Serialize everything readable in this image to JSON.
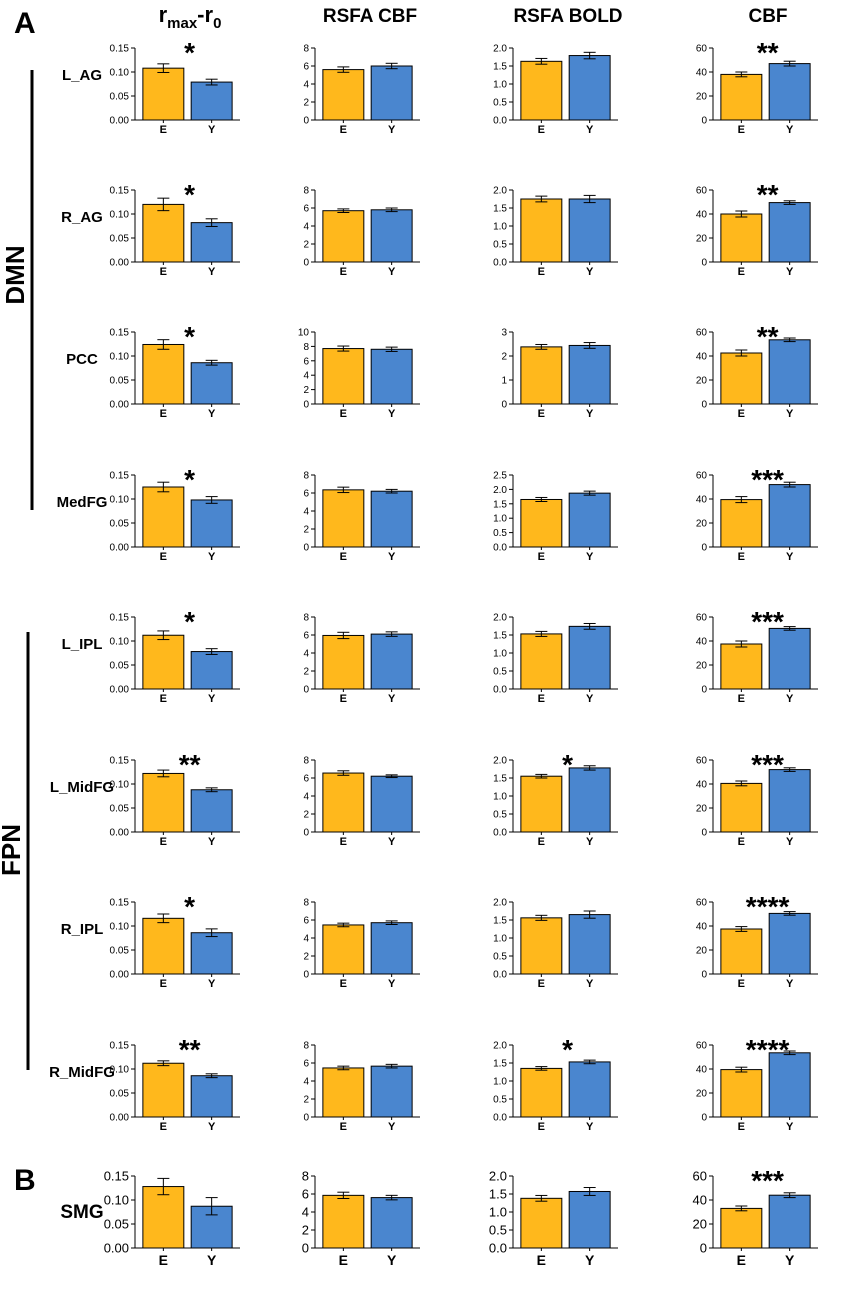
{
  "panel_a_label": "A",
  "panel_b_label": "B",
  "column_headers": {
    "rmax_base": "r",
    "rmax_sub1": "max",
    "rmax_dash": "-r",
    "rmax_sub2": "0",
    "rsfa_cbf": "RSFA CBF",
    "rsfa_bold": "RSFA BOLD",
    "cbf": "CBF"
  },
  "network_labels": {
    "dmn": "DMN",
    "fpn": "FPN"
  },
  "colors": {
    "elderly": "#FFB81C",
    "young": "#4A86CF",
    "outline": "#000000"
  },
  "categories": [
    "E",
    "Y"
  ],
  "chart_data": [
    {
      "region": "L_AG",
      "panel": "A",
      "charts": [
        {
          "type": "bar",
          "metric": "rmax-r0",
          "categories": [
            "E",
            "Y"
          ],
          "values": [
            0.108,
            0.079
          ],
          "errors": [
            0.009,
            0.006
          ],
          "ylim": [
            0,
            0.15
          ],
          "ticks": [
            "0.00",
            "0.05",
            "0.10",
            "0.15"
          ],
          "significance": "*"
        },
        {
          "type": "bar",
          "metric": "RSFA CBF",
          "categories": [
            "E",
            "Y"
          ],
          "values": [
            5.6,
            6.0
          ],
          "errors": [
            0.3,
            0.3
          ],
          "ylim": [
            0,
            8
          ],
          "ticks": [
            "0",
            "2",
            "4",
            "6",
            "8"
          ],
          "significance": ""
        },
        {
          "type": "bar",
          "metric": "RSFA BOLD",
          "categories": [
            "E",
            "Y"
          ],
          "values": [
            1.63,
            1.79
          ],
          "errors": [
            0.08,
            0.09
          ],
          "ylim": [
            0,
            2.0
          ],
          "ticks": [
            "0.0",
            "0.5",
            "1.0",
            "1.5",
            "2.0"
          ],
          "significance": ""
        },
        {
          "type": "bar",
          "metric": "CBF",
          "categories": [
            "E",
            "Y"
          ],
          "values": [
            38,
            47
          ],
          "errors": [
            2,
            2
          ],
          "ylim": [
            0,
            60
          ],
          "ticks": [
            "0",
            "20",
            "40",
            "60"
          ],
          "significance": "**"
        }
      ]
    },
    {
      "region": "R_AG",
      "panel": "A",
      "charts": [
        {
          "type": "bar",
          "metric": "rmax-r0",
          "categories": [
            "E",
            "Y"
          ],
          "values": [
            0.12,
            0.082
          ],
          "errors": [
            0.013,
            0.008
          ],
          "ylim": [
            0,
            0.15
          ],
          "ticks": [
            "0.00",
            "0.05",
            "0.10",
            "0.15"
          ],
          "significance": "*"
        },
        {
          "type": "bar",
          "metric": "RSFA CBF",
          "categories": [
            "E",
            "Y"
          ],
          "values": [
            5.7,
            5.8
          ],
          "errors": [
            0.2,
            0.2
          ],
          "ylim": [
            0,
            8
          ],
          "ticks": [
            "0",
            "2",
            "4",
            "6",
            "8"
          ],
          "significance": ""
        },
        {
          "type": "bar",
          "metric": "RSFA BOLD",
          "categories": [
            "E",
            "Y"
          ],
          "values": [
            1.75,
            1.75
          ],
          "errors": [
            0.08,
            0.1
          ],
          "ylim": [
            0,
            2.0
          ],
          "ticks": [
            "0.0",
            "0.5",
            "1.0",
            "1.5",
            "2.0"
          ],
          "significance": ""
        },
        {
          "type": "bar",
          "metric": "CBF",
          "categories": [
            "E",
            "Y"
          ],
          "values": [
            40,
            49.5
          ],
          "errors": [
            2.5,
            1.5
          ],
          "ylim": [
            0,
            60
          ],
          "ticks": [
            "0",
            "20",
            "40",
            "60"
          ],
          "significance": "**"
        }
      ]
    },
    {
      "region": "PCC",
      "panel": "A",
      "charts": [
        {
          "type": "bar",
          "metric": "rmax-r0",
          "categories": [
            "E",
            "Y"
          ],
          "values": [
            0.124,
            0.086
          ],
          "errors": [
            0.01,
            0.005
          ],
          "ylim": [
            0,
            0.15
          ],
          "ticks": [
            "0.00",
            "0.05",
            "0.10",
            "0.15"
          ],
          "significance": "*"
        },
        {
          "type": "bar",
          "metric": "RSFA CBF",
          "categories": [
            "E",
            "Y"
          ],
          "values": [
            7.7,
            7.6
          ],
          "errors": [
            0.35,
            0.3
          ],
          "ylim": [
            0,
            10
          ],
          "ticks": [
            "0",
            "2",
            "4",
            "6",
            "8",
            "10"
          ],
          "significance": ""
        },
        {
          "type": "bar",
          "metric": "RSFA BOLD",
          "categories": [
            "E",
            "Y"
          ],
          "values": [
            2.38,
            2.44
          ],
          "errors": [
            0.1,
            0.12
          ],
          "ylim": [
            0,
            3
          ],
          "ticks": [
            "0",
            "1",
            "2",
            "3"
          ],
          "significance": ""
        },
        {
          "type": "bar",
          "metric": "CBF",
          "categories": [
            "E",
            "Y"
          ],
          "values": [
            42.5,
            53.5
          ],
          "errors": [
            2.5,
            1.5
          ],
          "ylim": [
            0,
            60
          ],
          "ticks": [
            "0",
            "20",
            "40",
            "60"
          ],
          "significance": "**"
        }
      ]
    },
    {
      "region": "MedFG",
      "panel": "A",
      "charts": [
        {
          "type": "bar",
          "metric": "rmax-r0",
          "categories": [
            "E",
            "Y"
          ],
          "values": [
            0.125,
            0.098
          ],
          "errors": [
            0.01,
            0.007
          ],
          "ylim": [
            0,
            0.15
          ],
          "ticks": [
            "0.00",
            "0.05",
            "0.10",
            "0.15"
          ],
          "significance": "*"
        },
        {
          "type": "bar",
          "metric": "RSFA CBF",
          "categories": [
            "E",
            "Y"
          ],
          "values": [
            6.35,
            6.2
          ],
          "errors": [
            0.3,
            0.2
          ],
          "ylim": [
            0,
            8
          ],
          "ticks": [
            "0",
            "2",
            "4",
            "6",
            "8"
          ],
          "significance": ""
        },
        {
          "type": "bar",
          "metric": "RSFA BOLD",
          "categories": [
            "E",
            "Y"
          ],
          "values": [
            1.65,
            1.87
          ],
          "errors": [
            0.07,
            0.07
          ],
          "ylim": [
            0,
            2.5
          ],
          "ticks": [
            "0.0",
            "0.5",
            "1.0",
            "1.5",
            "2.0",
            "2.5"
          ],
          "significance": ""
        },
        {
          "type": "bar",
          "metric": "CBF",
          "categories": [
            "E",
            "Y"
          ],
          "values": [
            39.5,
            52
          ],
          "errors": [
            2.5,
            2
          ],
          "ylim": [
            0,
            60
          ],
          "ticks": [
            "0",
            "20",
            "40",
            "60"
          ],
          "significance": "***"
        }
      ]
    },
    {
      "region": "L_IPL",
      "panel": "A",
      "charts": [
        {
          "type": "bar",
          "metric": "rmax-r0",
          "categories": [
            "E",
            "Y"
          ],
          "values": [
            0.112,
            0.078
          ],
          "errors": [
            0.009,
            0.006
          ],
          "ylim": [
            0,
            0.15
          ],
          "ticks": [
            "0.00",
            "0.05",
            "0.10",
            "0.15"
          ],
          "significance": "*"
        },
        {
          "type": "bar",
          "metric": "RSFA CBF",
          "categories": [
            "E",
            "Y"
          ],
          "values": [
            5.95,
            6.1
          ],
          "errors": [
            0.35,
            0.25
          ],
          "ylim": [
            0,
            8
          ],
          "ticks": [
            "0",
            "2",
            "4",
            "6",
            "8"
          ],
          "significance": ""
        },
        {
          "type": "bar",
          "metric": "RSFA BOLD",
          "categories": [
            "E",
            "Y"
          ],
          "values": [
            1.53,
            1.74
          ],
          "errors": [
            0.07,
            0.08
          ],
          "ylim": [
            0,
            2.0
          ],
          "ticks": [
            "0.0",
            "0.5",
            "1.0",
            "1.5",
            "2.0"
          ],
          "significance": ""
        },
        {
          "type": "bar",
          "metric": "CBF",
          "categories": [
            "E",
            "Y"
          ],
          "values": [
            37.5,
            50.5
          ],
          "errors": [
            2.5,
            1.5
          ],
          "ylim": [
            0,
            60
          ],
          "ticks": [
            "0",
            "20",
            "40",
            "60"
          ],
          "significance": "***"
        }
      ]
    },
    {
      "region": "L_MidFG",
      "panel": "A",
      "charts": [
        {
          "type": "bar",
          "metric": "rmax-r0",
          "categories": [
            "E",
            "Y"
          ],
          "values": [
            0.122,
            0.088
          ],
          "errors": [
            0.007,
            0.004
          ],
          "ylim": [
            0,
            0.15
          ],
          "ticks": [
            "0.00",
            "0.05",
            "0.10",
            "0.15"
          ],
          "significance": "**"
        },
        {
          "type": "bar",
          "metric": "RSFA CBF",
          "categories": [
            "E",
            "Y"
          ],
          "values": [
            6.55,
            6.2
          ],
          "errors": [
            0.25,
            0.15
          ],
          "ylim": [
            0,
            8
          ],
          "ticks": [
            "0",
            "2",
            "4",
            "6",
            "8"
          ],
          "significance": ""
        },
        {
          "type": "bar",
          "metric": "RSFA BOLD",
          "categories": [
            "E",
            "Y"
          ],
          "values": [
            1.55,
            1.78
          ],
          "errors": [
            0.05,
            0.06
          ],
          "ylim": [
            0,
            2.0
          ],
          "ticks": [
            "0.0",
            "0.5",
            "1.0",
            "1.5",
            "2.0"
          ],
          "significance": "*"
        },
        {
          "type": "bar",
          "metric": "CBF",
          "categories": [
            "E",
            "Y"
          ],
          "values": [
            40.5,
            52
          ],
          "errors": [
            2,
            1.5
          ],
          "ylim": [
            0,
            60
          ],
          "ticks": [
            "0",
            "20",
            "40",
            "60"
          ],
          "significance": "***"
        }
      ]
    },
    {
      "region": "R_IPL",
      "panel": "A",
      "charts": [
        {
          "type": "bar",
          "metric": "rmax-r0",
          "categories": [
            "E",
            "Y"
          ],
          "values": [
            0.116,
            0.086
          ],
          "errors": [
            0.009,
            0.008
          ],
          "ylim": [
            0,
            0.15
          ],
          "ticks": [
            "0.00",
            "0.05",
            "0.10",
            "0.15"
          ],
          "significance": "*"
        },
        {
          "type": "bar",
          "metric": "RSFA CBF",
          "categories": [
            "E",
            "Y"
          ],
          "values": [
            5.45,
            5.7
          ],
          "errors": [
            0.2,
            0.2
          ],
          "ylim": [
            0,
            8
          ],
          "ticks": [
            "0",
            "2",
            "4",
            "6",
            "8"
          ],
          "significance": ""
        },
        {
          "type": "bar",
          "metric": "RSFA BOLD",
          "categories": [
            "E",
            "Y"
          ],
          "values": [
            1.56,
            1.65
          ],
          "errors": [
            0.07,
            0.1
          ],
          "ylim": [
            0,
            2.0
          ],
          "ticks": [
            "0.0",
            "0.5",
            "1.0",
            "1.5",
            "2.0"
          ],
          "significance": ""
        },
        {
          "type": "bar",
          "metric": "CBF",
          "categories": [
            "E",
            "Y"
          ],
          "values": [
            37.5,
            50.5
          ],
          "errors": [
            2,
            1.5
          ],
          "ylim": [
            0,
            60
          ],
          "ticks": [
            "0",
            "20",
            "40",
            "60"
          ],
          "significance": "****"
        }
      ]
    },
    {
      "region": "R_MidFG",
      "panel": "A",
      "charts": [
        {
          "type": "bar",
          "metric": "rmax-r0",
          "categories": [
            "E",
            "Y"
          ],
          "values": [
            0.112,
            0.086
          ],
          "errors": [
            0.005,
            0.004
          ],
          "ylim": [
            0,
            0.15
          ],
          "ticks": [
            "0.00",
            "0.05",
            "0.10",
            "0.15"
          ],
          "significance": "**"
        },
        {
          "type": "bar",
          "metric": "RSFA CBF",
          "categories": [
            "E",
            "Y"
          ],
          "values": [
            5.45,
            5.65
          ],
          "errors": [
            0.2,
            0.2
          ],
          "ylim": [
            0,
            8
          ],
          "ticks": [
            "0",
            "2",
            "4",
            "6",
            "8"
          ],
          "significance": ""
        },
        {
          "type": "bar",
          "metric": "RSFA BOLD",
          "categories": [
            "E",
            "Y"
          ],
          "values": [
            1.35,
            1.53
          ],
          "errors": [
            0.05,
            0.05
          ],
          "ylim": [
            0,
            2.0
          ],
          "ticks": [
            "0.0",
            "0.5",
            "1.0",
            "1.5",
            "2.0"
          ],
          "significance": "*"
        },
        {
          "type": "bar",
          "metric": "CBF",
          "categories": [
            "E",
            "Y"
          ],
          "values": [
            39.5,
            53.5
          ],
          "errors": [
            2,
            1.5
          ],
          "ylim": [
            0,
            60
          ],
          "ticks": [
            "0",
            "20",
            "40",
            "60"
          ],
          "significance": "****"
        }
      ]
    },
    {
      "region": "SMG",
      "panel": "B",
      "charts": [
        {
          "type": "bar",
          "metric": "rmax-r0",
          "categories": [
            "E",
            "Y"
          ],
          "values": [
            0.128,
            0.087
          ],
          "errors": [
            0.017,
            0.018
          ],
          "ylim": [
            0,
            0.15
          ],
          "ticks": [
            "0.00",
            "0.05",
            "0.10",
            "0.15"
          ],
          "significance": ""
        },
        {
          "type": "bar",
          "metric": "RSFA CBF",
          "categories": [
            "E",
            "Y"
          ],
          "values": [
            5.85,
            5.6
          ],
          "errors": [
            0.35,
            0.25
          ],
          "ylim": [
            0,
            8
          ],
          "ticks": [
            "0",
            "2",
            "4",
            "6",
            "8"
          ],
          "significance": ""
        },
        {
          "type": "bar",
          "metric": "RSFA BOLD",
          "categories": [
            "E",
            "Y"
          ],
          "values": [
            1.38,
            1.57
          ],
          "errors": [
            0.08,
            0.11
          ],
          "ylim": [
            0,
            2.0
          ],
          "ticks": [
            "0.0",
            "0.5",
            "1.0",
            "1.5",
            "2.0"
          ],
          "significance": ""
        },
        {
          "type": "bar",
          "metric": "CBF",
          "categories": [
            "E",
            "Y"
          ],
          "values": [
            33,
            44
          ],
          "errors": [
            2,
            2
          ],
          "ylim": [
            0,
            60
          ],
          "ticks": [
            "0",
            "20",
            "40",
            "60"
          ],
          "significance": "***"
        }
      ]
    }
  ]
}
